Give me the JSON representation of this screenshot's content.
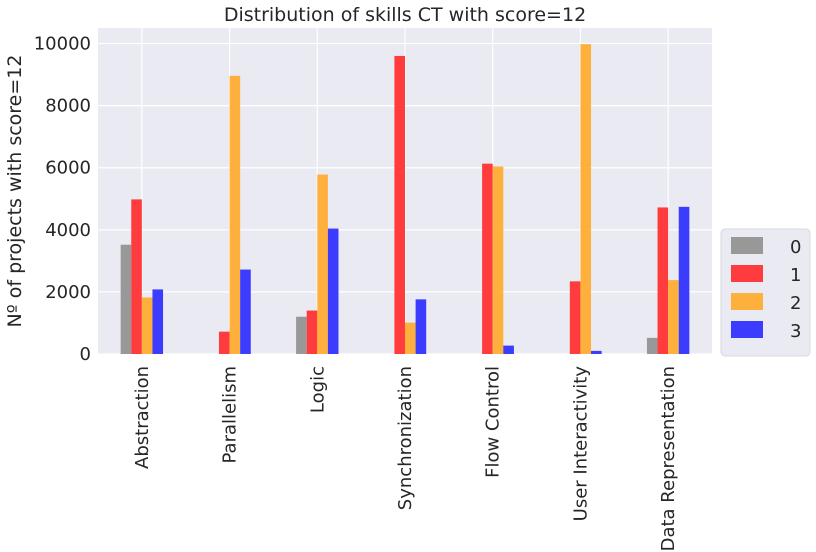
{
  "chart_data": {
    "type": "bar",
    "title": "Distribution of skills CT with score=12",
    "xlabel": "",
    "ylabel": "Nº of projects with score=12",
    "ylim": [
      0,
      10500
    ],
    "yticks": [
      0,
      2000,
      4000,
      6000,
      8000,
      10000
    ],
    "categories": [
      "Abstraction",
      "Parallelism",
      "Logic",
      "Synchronization",
      "Flow Control",
      "User Interactivity",
      "Data Representation"
    ],
    "series": [
      {
        "name": "0",
        "color": "#939393",
        "values": [
          3520,
          0,
          1200,
          0,
          0,
          0,
          520
        ]
      },
      {
        "name": "1",
        "color": "#ff3333",
        "values": [
          4980,
          720,
          1400,
          9600,
          6130,
          2340,
          4720
        ]
      },
      {
        "name": "2",
        "color": "#ffad33",
        "values": [
          1820,
          8960,
          5780,
          1010,
          6040,
          9980,
          2380
        ]
      },
      {
        "name": "3",
        "color": "#3333ff",
        "values": [
          2080,
          2720,
          4040,
          1760,
          270,
          100,
          4740
        ]
      }
    ],
    "grid": true,
    "legend_position": "right"
  }
}
